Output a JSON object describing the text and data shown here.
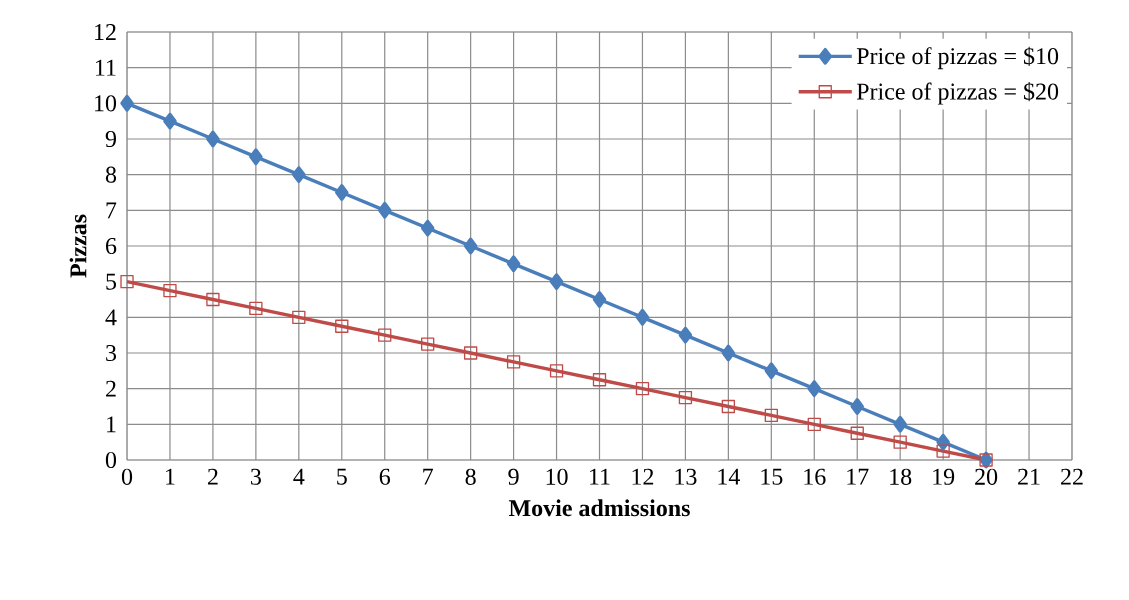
{
  "chart_data": {
    "type": "line",
    "xlabel": "Movie admissions",
    "ylabel": "Pizzas",
    "x": [
      0,
      1,
      2,
      3,
      4,
      5,
      6,
      7,
      8,
      9,
      10,
      11,
      12,
      13,
      14,
      15,
      16,
      17,
      18,
      19,
      20
    ],
    "series": [
      {
        "name": "Price of pizzas = $10",
        "color": "#4a7ebb",
        "marker": "diamond",
        "values": [
          10,
          9.5,
          9,
          8.5,
          8,
          7.5,
          7,
          6.5,
          6,
          5.5,
          5,
          4.5,
          4,
          3.5,
          3,
          2.5,
          2,
          1.5,
          1,
          0.5,
          0
        ]
      },
      {
        "name": "Price of pizzas = $20",
        "color": "#be4b48",
        "marker": "square",
        "values": [
          5,
          4.75,
          4.5,
          4.25,
          4,
          3.75,
          3.5,
          3.25,
          3,
          2.75,
          2.5,
          2.25,
          2,
          1.75,
          1.5,
          1.25,
          1,
          0.75,
          0.5,
          0.25,
          0
        ]
      }
    ],
    "xlim": [
      0,
      22
    ],
    "xticks": [
      0,
      1,
      2,
      3,
      4,
      5,
      6,
      7,
      8,
      9,
      10,
      11,
      12,
      13,
      14,
      15,
      16,
      17,
      18,
      19,
      20,
      21,
      22
    ],
    "ylim": [
      0,
      12
    ],
    "yticks": [
      0,
      1,
      2,
      3,
      4,
      5,
      6,
      7,
      8,
      9,
      10,
      11,
      12
    ],
    "grid": true,
    "legend": "top right",
    "line_style": "solid"
  }
}
